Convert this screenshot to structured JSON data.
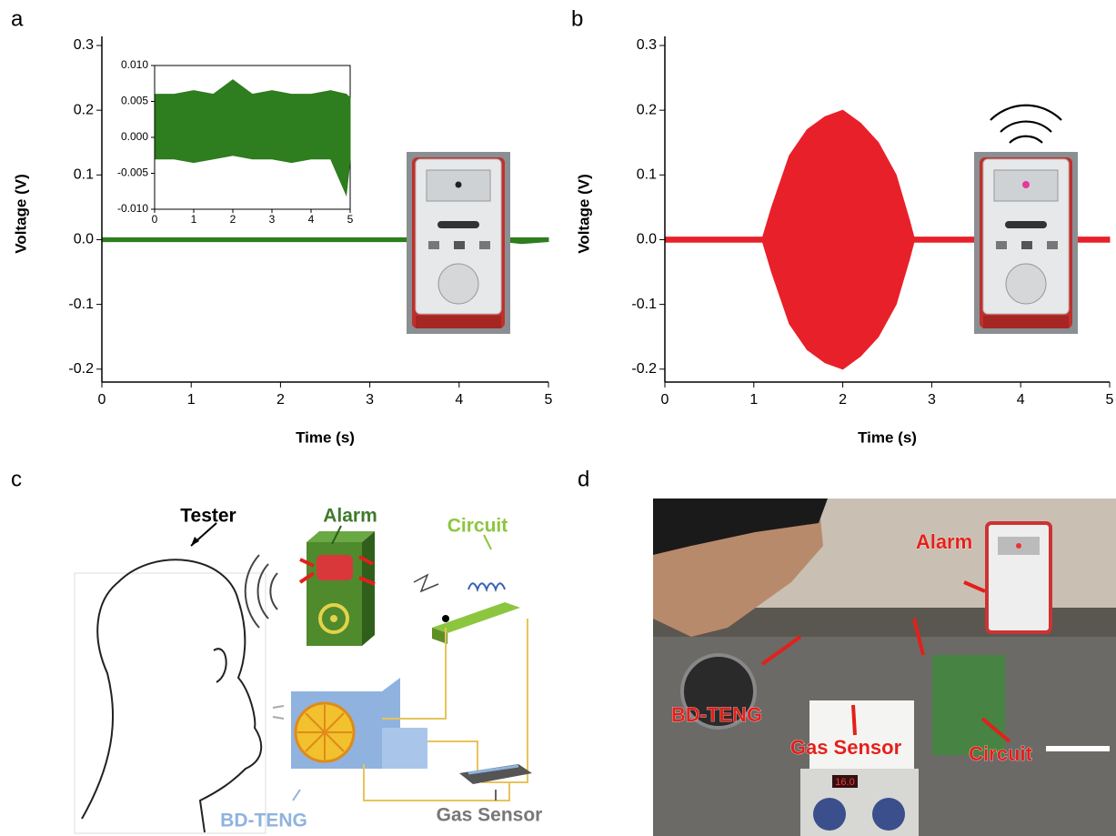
{
  "panel_labels": [
    "a",
    "b",
    "c",
    "d"
  ],
  "chart_data": [
    {
      "type": "line",
      "xlabel": "Time (s)",
      "ylabel": "Voltage (V)",
      "xlim": [
        0,
        5
      ],
      "ylim": [
        -0.22,
        0.3
      ],
      "xticks": [
        0,
        1,
        2,
        3,
        4,
        5
      ],
      "yticks": [
        -0.2,
        -0.1,
        {
          "value": 0,
          "label": "0.0"
        },
        0.1,
        0.2,
        0.3
      ],
      "x": [
        0,
        0.5,
        1,
        1.5,
        2,
        2.5,
        3,
        3.5,
        4,
        4.5,
        4.7,
        5
      ],
      "series": [
        {
          "color": "#2e7d1e",
          "values": [
            0.003,
            0.003,
            0.003,
            0.003,
            0.003,
            0.003,
            0.003,
            0.003,
            0.003,
            0.003,
            0.003,
            0.003
          ]
        },
        {
          "color": "#2e7d1e",
          "values": [
            -0.003,
            -0.003,
            -0.003,
            -0.003,
            -0.003,
            -0.003,
            -0.003,
            -0.003,
            -0.003,
            -0.003,
            -0.006,
            -0.003
          ]
        }
      ],
      "inset": {
        "xlim": [
          0,
          5
        ],
        "ylim": [
          -0.01,
          0.01
        ],
        "xticks": [
          0,
          1,
          2,
          3,
          4,
          5
        ],
        "yticks": [
          {
            "value": -0.01,
            "label": "-0.010"
          },
          -0.005,
          {
            "value": 0,
            "label": "0.000"
          },
          0.005,
          {
            "value": 0.01,
            "label": "0.010"
          }
        ],
        "x": [
          0,
          0.5,
          1,
          1.5,
          2,
          2.5,
          3,
          3.5,
          4,
          4.5,
          4.9,
          5
        ],
        "series": [
          {
            "color": "#2e7d1e",
            "values": [
              0.006,
              0.006,
              0.0065,
              0.006,
              0.008,
              0.006,
              0.0065,
              0.006,
              0.006,
              0.0065,
              0.006,
              0.0055
            ]
          },
          {
            "color": "#2e7d1e",
            "values": [
              -0.003,
              -0.003,
              -0.0035,
              -0.003,
              -0.0025,
              -0.003,
              -0.003,
              -0.0035,
              -0.003,
              -0.003,
              -0.008,
              -0.003
            ]
          }
        ]
      }
    },
    {
      "type": "line",
      "xlabel": "Time (s)",
      "ylabel": "Voltage (V)",
      "xlim": [
        0,
        5
      ],
      "ylim": [
        -0.22,
        0.3
      ],
      "xticks": [
        0,
        1,
        2,
        3,
        4,
        5
      ],
      "yticks": [
        -0.2,
        -0.1,
        {
          "value": 0,
          "label": "0.0"
        },
        0.1,
        0.2,
        0.3
      ],
      "x": [
        0,
        1.1,
        1.2,
        1.4,
        1.6,
        1.8,
        2.0,
        2.2,
        2.4,
        2.6,
        2.75,
        2.8,
        5
      ],
      "series": [
        {
          "color": "#e8202a",
          "values": [
            0.004,
            0.004,
            0.05,
            0.13,
            0.17,
            0.19,
            0.2,
            0.18,
            0.15,
            0.1,
            0.03,
            0.004,
            0.004
          ]
        },
        {
          "color": "#e8202a",
          "values": [
            -0.004,
            -0.004,
            -0.05,
            -0.13,
            -0.17,
            -0.19,
            -0.2,
            -0.18,
            -0.15,
            -0.1,
            -0.03,
            -0.004,
            -0.004
          ]
        }
      ]
    }
  ],
  "diagram": {
    "tester": "Tester",
    "alarm": "Alarm",
    "circuit": "Circuit",
    "bd_teng": "BD-TENG",
    "gas_sensor": "Gas Sensor"
  },
  "photo": {
    "alarm": "Alarm",
    "bd_teng": "BD-TENG",
    "gas_sensor": "Gas Sensor",
    "circuit": "Circuit",
    "display": "16.0"
  }
}
